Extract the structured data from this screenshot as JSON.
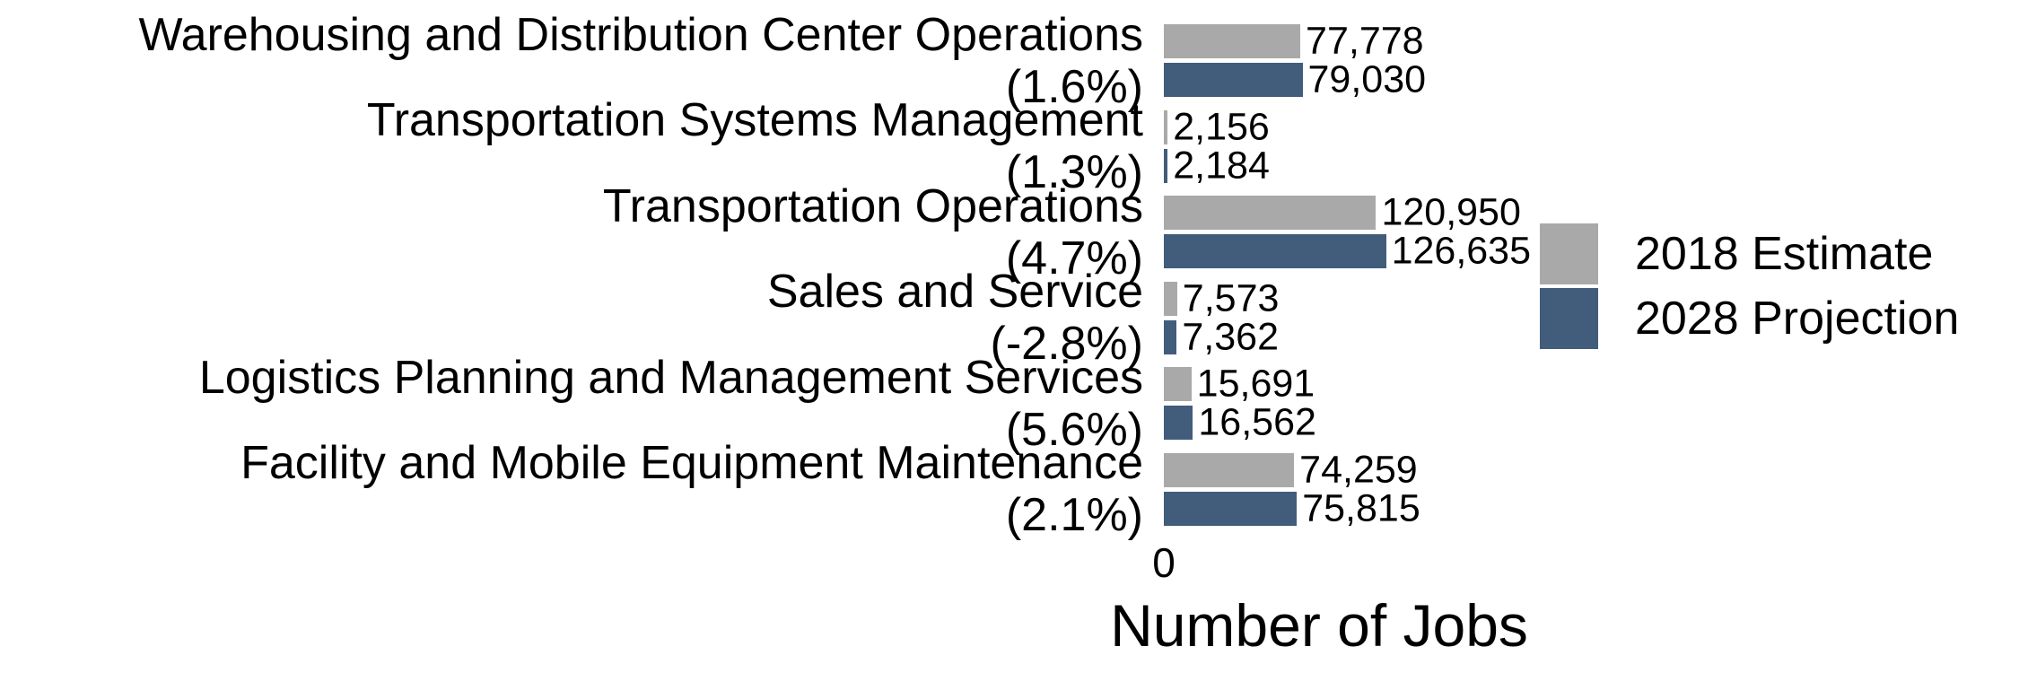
{
  "chart_data": {
    "type": "bar",
    "orientation": "horizontal",
    "categories": [
      "Warehousing and Distribution Center Operations\n(1.6%)",
      "Transportation Systems Management\n(1.3%)",
      "Transportation Operations\n(4.7%)",
      "Sales and Service\n(-2.8%)",
      "Logistics Planning and Management Services\n(5.6%)",
      "Facility and Mobile Equipment Maintenance\n(2.1%)"
    ],
    "series": [
      {
        "name": "2018 Estimate",
        "color": "#a9a9a9",
        "values": [
          77778,
          2156,
          120950,
          7573,
          15691,
          74259
        ],
        "value_labels": [
          "77,778",
          "2,156",
          "120,950",
          "7,573",
          "15,691",
          "74,259"
        ]
      },
      {
        "name": "2028 Projection",
        "color": "#425c7b",
        "values": [
          79030,
          2184,
          126635,
          7362,
          16562,
          75815
        ],
        "value_labels": [
          "79,030",
          "2,184",
          "126,635",
          "7,362",
          "16,562",
          "75,815"
        ]
      }
    ],
    "xlabel": "Number of Jobs",
    "xlim": [
      0,
      178000
    ],
    "xticks": [
      0
    ],
    "grid": false,
    "legend": "right"
  }
}
